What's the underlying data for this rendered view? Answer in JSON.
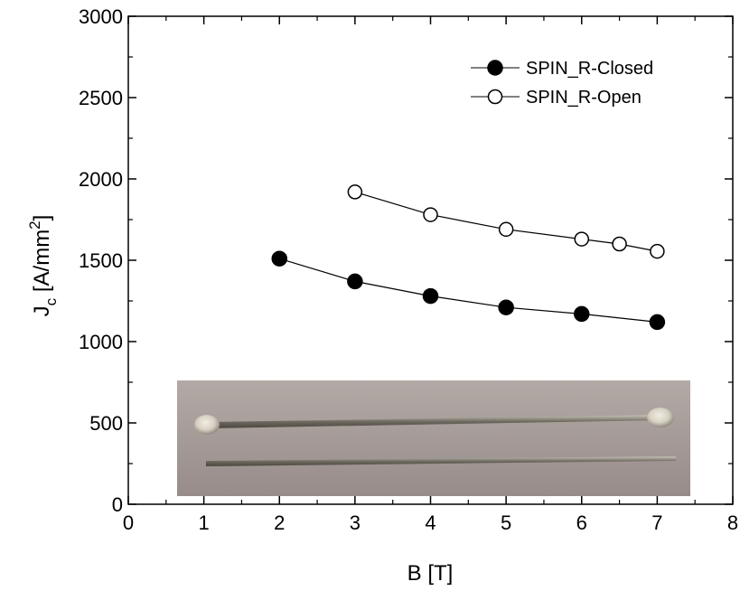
{
  "chart_data": {
    "type": "scatter",
    "xlabel": "B [T]",
    "ylabel": {
      "main": "J",
      "sub": "c",
      "unit_open": " [A/mm",
      "sup": "2",
      "unit_close": "]"
    },
    "xlim": [
      0,
      8
    ],
    "ylim": [
      0,
      3000
    ],
    "x_ticks": [
      "0",
      "1",
      "2",
      "3",
      "4",
      "5",
      "6",
      "7",
      "8"
    ],
    "y_ticks": [
      "0",
      "500",
      "1000",
      "1500",
      "2000",
      "2500",
      "3000"
    ],
    "grid": false,
    "legend_position": "top-right",
    "series": [
      {
        "name": "SPIN_R-Closed",
        "marker": "filled-circle",
        "color": "#000000",
        "x": [
          2,
          3,
          4,
          5,
          6,
          7
        ],
        "y": [
          1510,
          1370,
          1280,
          1210,
          1170,
          1120
        ]
      },
      {
        "name": "SPIN_R-Open",
        "marker": "open-circle",
        "color": "#000000",
        "x": [
          3,
          4,
          5,
          6,
          6.5,
          7
        ],
        "y": [
          1920,
          1780,
          1690,
          1630,
          1600,
          1555
        ]
      }
    ],
    "inset_photo": {
      "description_icon": "wire-sample-photo",
      "background": "#a39a97",
      "wire_color": "#6e6a60"
    }
  }
}
